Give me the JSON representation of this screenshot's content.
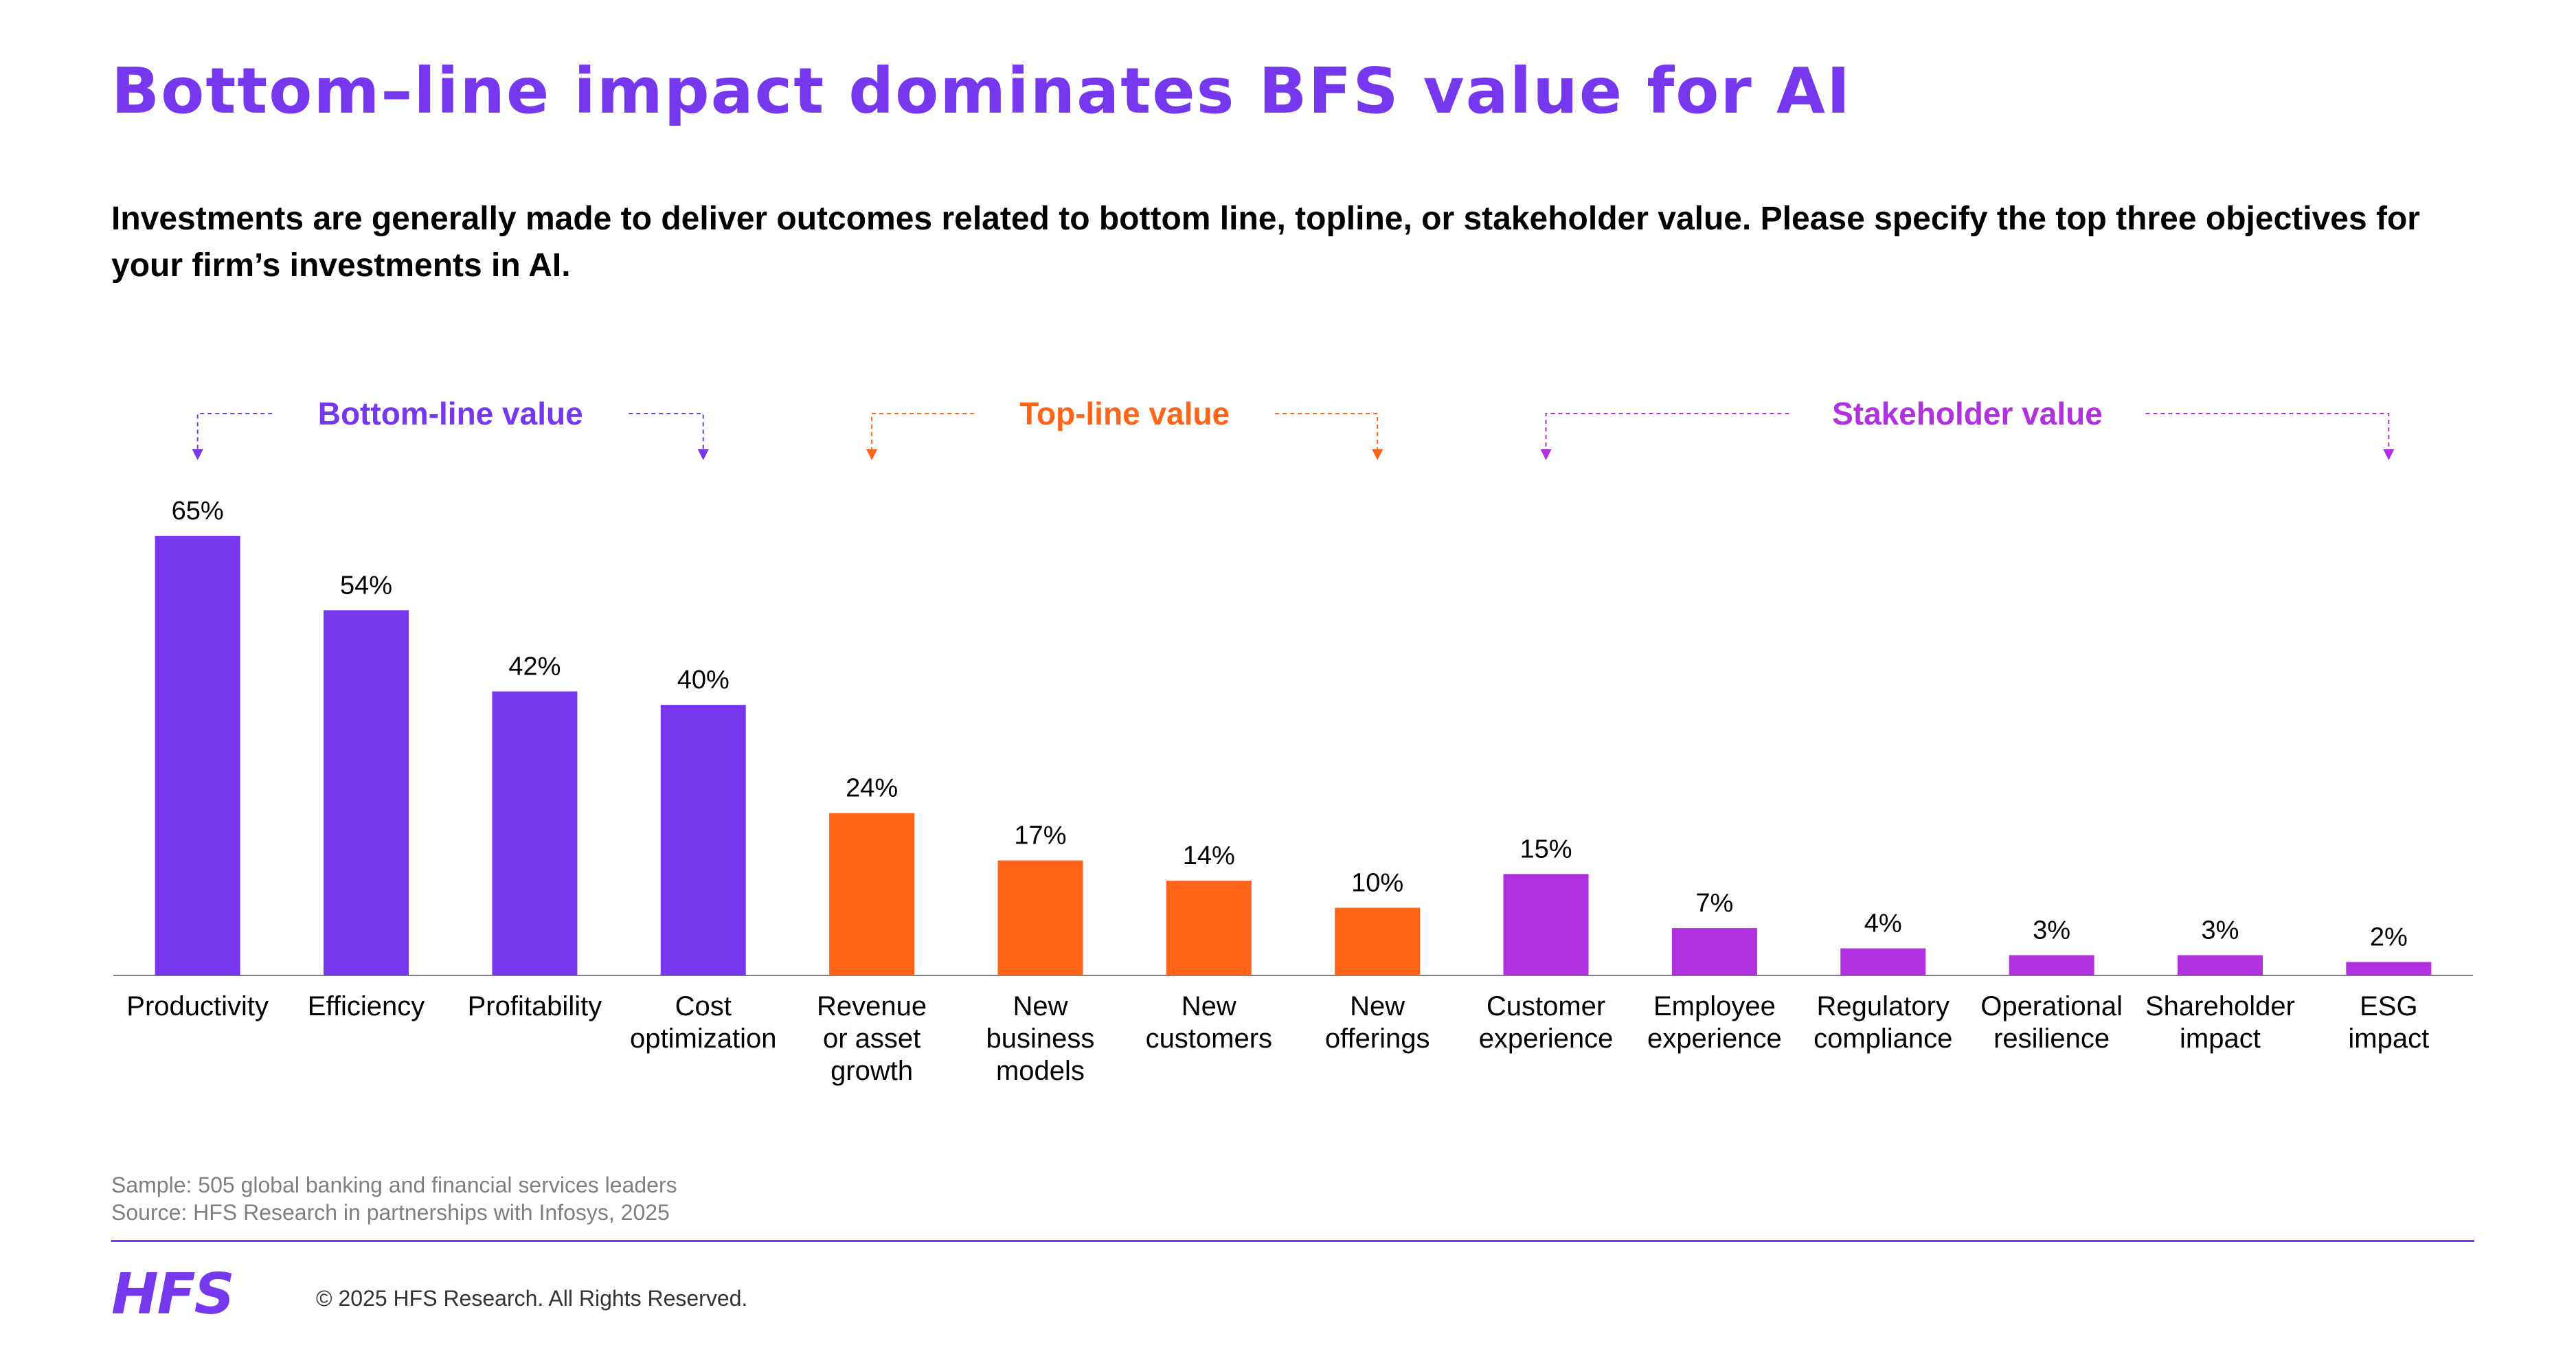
{
  "title": "Bottom–line impact dominates BFS value for AI",
  "subtitle": "Investments are generally made to deliver outcomes related to bottom line, topline, or stakeholder value. Please specify the top three objectives for your firm’s investments in AI.",
  "chart_data": {
    "type": "bar",
    "categories": [
      [
        "Productivity"
      ],
      [
        "Efficiency"
      ],
      [
        "Profitability"
      ],
      [
        "Cost",
        "optimization"
      ],
      [
        "Revenue",
        "or asset",
        "growth"
      ],
      [
        "New",
        "business",
        "models"
      ],
      [
        "New",
        "customers"
      ],
      [
        "New",
        "offerings"
      ],
      [
        "Customer",
        "experience"
      ],
      [
        "Employee",
        "experience"
      ],
      [
        "Regulatory",
        "compliance"
      ],
      [
        "Operational",
        "resilience"
      ],
      [
        "Shareholder",
        "impact"
      ],
      [
        "ESG",
        "impact"
      ]
    ],
    "values": [
      65,
      54,
      42,
      40,
      24,
      17,
      14,
      10,
      15,
      7,
      4,
      3,
      3,
      2
    ],
    "value_labels": [
      "65%",
      "54%",
      "42%",
      "40%",
      "24%",
      "17%",
      "14%",
      "10%",
      "15%",
      "7%",
      "4%",
      "3%",
      "3%",
      "2%"
    ],
    "groups": [
      {
        "label": "Bottom-line value",
        "start": 0,
        "end": 3,
        "color": "#7638ee"
      },
      {
        "label": "Top-line value",
        "start": 4,
        "end": 7,
        "color": "#ff6418"
      },
      {
        "label": "Stakeholder value",
        "start": 8,
        "end": 13,
        "color": "#b130e0"
      }
    ],
    "ylim": [
      0,
      70
    ],
    "grid": false,
    "legend": "group brackets above bars"
  },
  "footnotes": {
    "sample": "Sample: 505 global banking and financial services leaders",
    "source": "Source: HFS Research in partnerships with Infosys, 2025"
  },
  "footer": {
    "logo": "HFS",
    "copyright": "© 2025 HFS Research. All Rights Reserved."
  },
  "colors": {
    "accent": "#7638ee",
    "topline": "#ff6418",
    "stakeholder": "#b130e0"
  }
}
